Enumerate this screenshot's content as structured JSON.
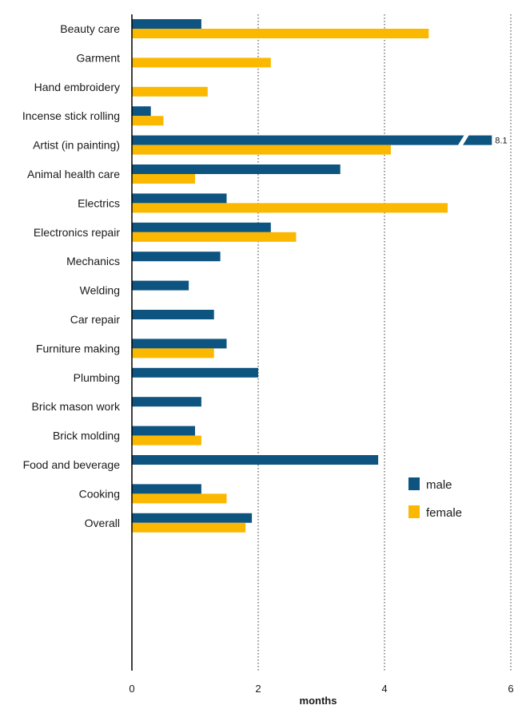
{
  "chart_data": {
    "type": "bar",
    "orientation": "horizontal",
    "xlabel": "months",
    "xlim": [
      0,
      6
    ],
    "xticks": [
      0,
      2,
      4,
      6
    ],
    "grid": true,
    "legend_position": "right",
    "colors": {
      "male": "#0e5481",
      "female": "#fbb800"
    },
    "series": [
      {
        "name": "male",
        "color": "#0e5481"
      },
      {
        "name": "female",
        "color": "#fbb800"
      }
    ],
    "groups": [
      [
        {
          "label": "Beauty care",
          "male": 1.1,
          "female": 4.7
        },
        {
          "label": "Garment",
          "male": null,
          "female": 2.2
        },
        {
          "label": "Hand embroidery",
          "male": null,
          "female": 1.2
        },
        {
          "label": "Incense stick rolling",
          "male": 0.3,
          "female": 0.5
        },
        {
          "label": "Artist (in painting)",
          "male": 8.1,
          "female": 4.1,
          "male_label": "8.1",
          "male_truncated": true
        },
        {
          "label": "Animal health care",
          "male": 3.3,
          "female": 1.0
        }
      ],
      [
        {
          "label": "Electrics",
          "male": 1.5,
          "female": 5.0
        },
        {
          "label": "Electronics repair",
          "male": 2.2,
          "female": 2.6
        },
        {
          "label": "Mechanics",
          "male": 1.4,
          "female": null
        },
        {
          "label": "Welding",
          "male": 0.9,
          "female": null
        },
        {
          "label": "Car repair",
          "male": 1.3,
          "female": null
        }
      ],
      [
        {
          "label": "Furniture making",
          "male": 1.5,
          "female": 1.3
        },
        {
          "label": "Plumbing",
          "male": 2.0,
          "female": null
        },
        {
          "label": "Brick mason work",
          "male": 1.1,
          "female": null
        },
        {
          "label": "Brick molding",
          "male": 1.0,
          "female": 1.1
        }
      ],
      [
        {
          "label": "Food and beverage",
          "male": 3.9,
          "female": null
        },
        {
          "label": "Cooking",
          "male": 1.1,
          "female": 1.5
        }
      ],
      [
        {
          "label": "Overall",
          "male": 1.9,
          "female": 1.8
        }
      ]
    ]
  },
  "legend": {
    "male": "male",
    "female": "female"
  }
}
